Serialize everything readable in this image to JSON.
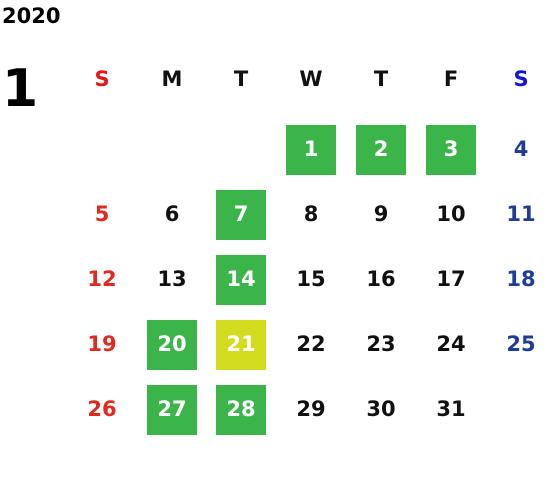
{
  "year": "2020",
  "month": "1",
  "weekdays": [
    "S",
    "M",
    "T",
    "W",
    "T",
    "F",
    "S"
  ],
  "header_colors": [
    "#e3161b",
    "#111111",
    "#111111",
    "#111111",
    "#111111",
    "#111111",
    "#1515d6"
  ],
  "day_colors": [
    "#e02a1f",
    "#111111",
    "#111111",
    "#111111",
    "#111111",
    "#111111",
    "#1e3d96"
  ],
  "highlight_text_color": "#ffffff",
  "weeks": [
    [
      null,
      null,
      null,
      {
        "day": 1,
        "bg": "#3bb54a"
      },
      {
        "day": 2,
        "bg": "#3bb54a"
      },
      {
        "day": 3,
        "bg": "#3bb54a"
      },
      {
        "day": 4
      }
    ],
    [
      {
        "day": 5
      },
      {
        "day": 6
      },
      {
        "day": 7,
        "bg": "#3bb54a"
      },
      {
        "day": 8
      },
      {
        "day": 9
      },
      {
        "day": 10
      },
      {
        "day": 11
      }
    ],
    [
      {
        "day": 12
      },
      {
        "day": 13
      },
      {
        "day": 14,
        "bg": "#3bb54a"
      },
      {
        "day": 15
      },
      {
        "day": 16
      },
      {
        "day": 17
      },
      {
        "day": 18
      }
    ],
    [
      {
        "day": 19
      },
      {
        "day": 20,
        "bg": "#3bb54a"
      },
      {
        "day": 21,
        "bg": "#d3dc1e"
      },
      {
        "day": 22
      },
      {
        "day": 23
      },
      {
        "day": 24
      },
      {
        "day": 25
      }
    ],
    [
      {
        "day": 26
      },
      {
        "day": 27,
        "bg": "#3bb54a"
      },
      {
        "day": 28,
        "bg": "#3bb54a"
      },
      {
        "day": 29
      },
      {
        "day": 30
      },
      {
        "day": 31
      },
      null
    ]
  ]
}
